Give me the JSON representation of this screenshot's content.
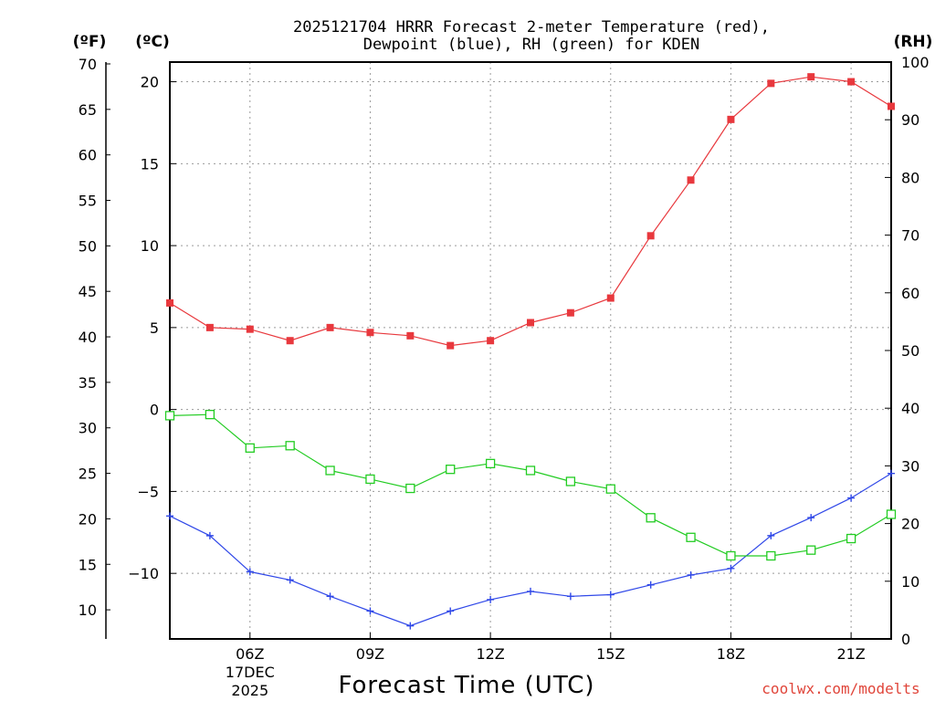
{
  "chart_data": {
    "type": "line",
    "title": "2025121704 HRRR Forecast 2-meter Temperature (red),\nDewpoint (blue), RH (green) for KDEN",
    "xlabel": "Forecast Time (UTC)",
    "units": {
      "fahrenheit": "(ºF)",
      "celsius": "(ºC)",
      "rh": "(RH)"
    },
    "credit": "coolwx.com/modelts",
    "x_hours": [
      4,
      5,
      6,
      7,
      8,
      9,
      10,
      11,
      12,
      13,
      14,
      15,
      16,
      17,
      18,
      19,
      20,
      21,
      22
    ],
    "xlim": [
      4,
      22
    ],
    "x_ticks": [
      {
        "hour": 6,
        "label": "06Z",
        "sub": [
          "17DEC",
          "2025"
        ]
      },
      {
        "hour": 9,
        "label": "09Z"
      },
      {
        "hour": 12,
        "label": "12Z"
      },
      {
        "hour": 15,
        "label": "15Z"
      },
      {
        "hour": 18,
        "label": "18Z"
      },
      {
        "hour": 21,
        "label": "21Z"
      }
    ],
    "celsius_axis": {
      "ylim": [
        -14,
        21.2
      ],
      "ticks": [
        20,
        15,
        10,
        5,
        0,
        -5,
        -10
      ]
    },
    "fahrenheit_axis": {
      "ylim": [
        6.8,
        70.2
      ],
      "ticks": [
        70,
        65,
        60,
        55,
        50,
        45,
        40,
        35,
        30,
        25,
        20,
        15,
        10
      ]
    },
    "rh_axis": {
      "ylim": [
        0,
        100
      ],
      "ticks": [
        100,
        90,
        80,
        70,
        60,
        50,
        40,
        30,
        20,
        10,
        0
      ]
    },
    "series": [
      {
        "name": "Temperature",
        "axis": "celsius",
        "color": "#e8383d",
        "marker": "filled-square",
        "values": [
          6.5,
          5.0,
          4.9,
          4.2,
          5.0,
          4.7,
          4.5,
          3.9,
          4.2,
          5.3,
          5.9,
          6.8,
          10.6,
          14.0,
          17.7,
          19.9,
          20.3,
          20.0,
          18.5
        ]
      },
      {
        "name": "Dewpoint",
        "axis": "celsius",
        "color": "#3048e8",
        "marker": "plus",
        "values": [
          -6.5,
          -7.7,
          -9.9,
          -10.4,
          -11.4,
          -12.3,
          -13.2,
          -12.3,
          -11.6,
          -11.1,
          -11.4,
          -11.3,
          -10.7,
          -10.1,
          -9.7,
          -7.7,
          -6.6,
          -5.4,
          -3.9
        ]
      },
      {
        "name": "RH",
        "axis": "rh",
        "color": "#22cc22",
        "marker": "open-square",
        "values": [
          38.7,
          38.9,
          33.1,
          33.5,
          29.2,
          27.7,
          26.1,
          29.4,
          30.4,
          29.2,
          27.3,
          26.0,
          21.0,
          17.6,
          14.4,
          14.4,
          15.4,
          17.4,
          21.6
        ]
      }
    ]
  }
}
